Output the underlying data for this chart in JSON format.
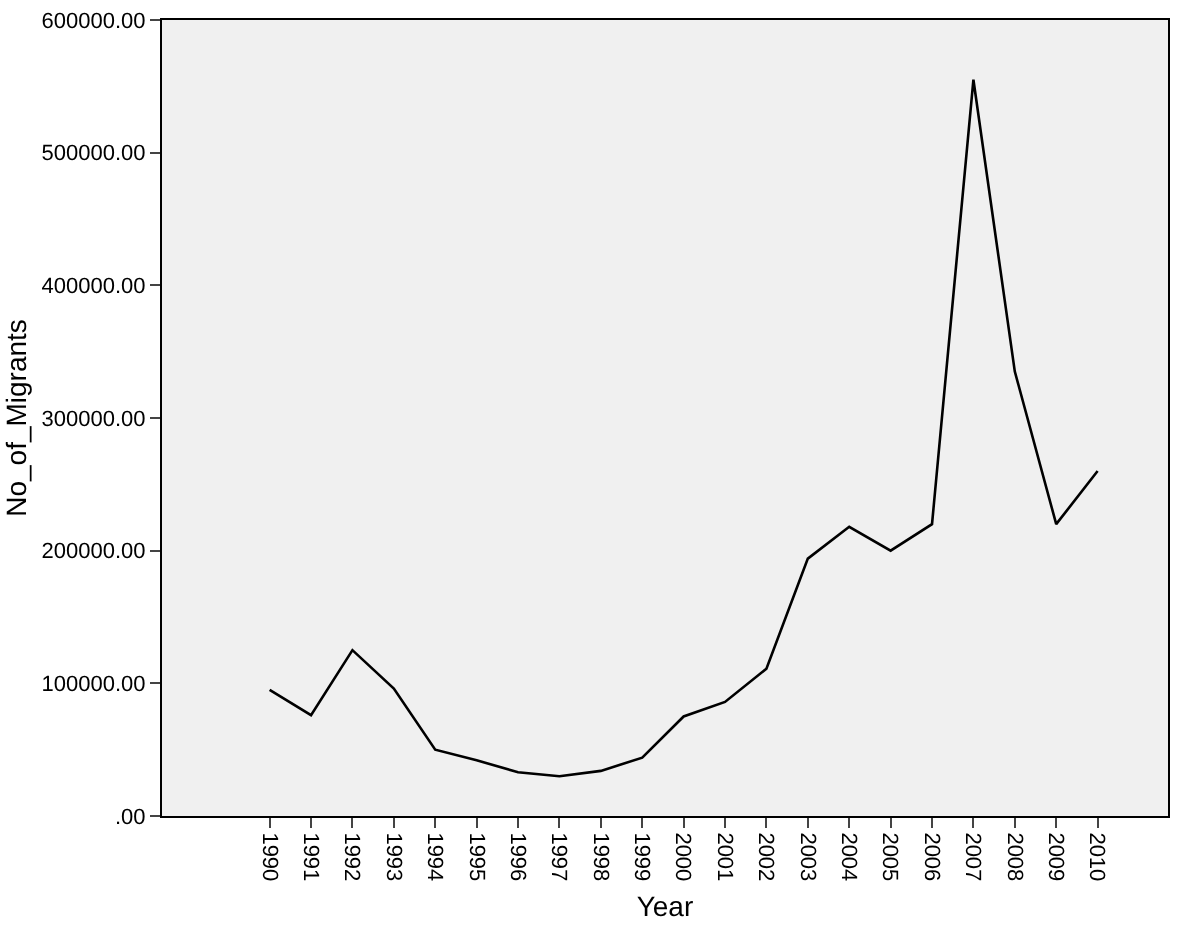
{
  "chart_data": {
    "type": "line",
    "xlabel": "Year",
    "ylabel": "No_of_Migrants",
    "categories": [
      "1990",
      "1991",
      "1992",
      "1993",
      "1994",
      "1995",
      "1996",
      "1997",
      "1998",
      "1999",
      "2000",
      "2001",
      "2002",
      "2003",
      "2004",
      "2005",
      "2006",
      "2007",
      "2008",
      "2009",
      "2010"
    ],
    "series": [
      {
        "color": "#000000",
        "values": [
          95000,
          76000,
          125000,
          96000,
          50000,
          42000,
          33000,
          30000,
          34000,
          44000,
          75000,
          86000,
          111000,
          194000,
          218000,
          200000,
          220000,
          555000,
          335000,
          220000,
          260000
        ]
      }
    ],
    "ylim": [
      0,
      600000
    ],
    "yticks": [
      {
        "value": 0,
        "label": ".00"
      },
      {
        "value": 100000,
        "label": "100000.00"
      },
      {
        "value": 200000,
        "label": "200000.00"
      },
      {
        "value": 300000,
        "label": "300000.00"
      },
      {
        "value": 400000,
        "label": "400000.00"
      },
      {
        "value": 500000,
        "label": "500000.00"
      },
      {
        "value": 600000,
        "label": "600000.00"
      }
    ],
    "grid": false,
    "legend": false,
    "marker": "none",
    "line_style": "solid"
  }
}
